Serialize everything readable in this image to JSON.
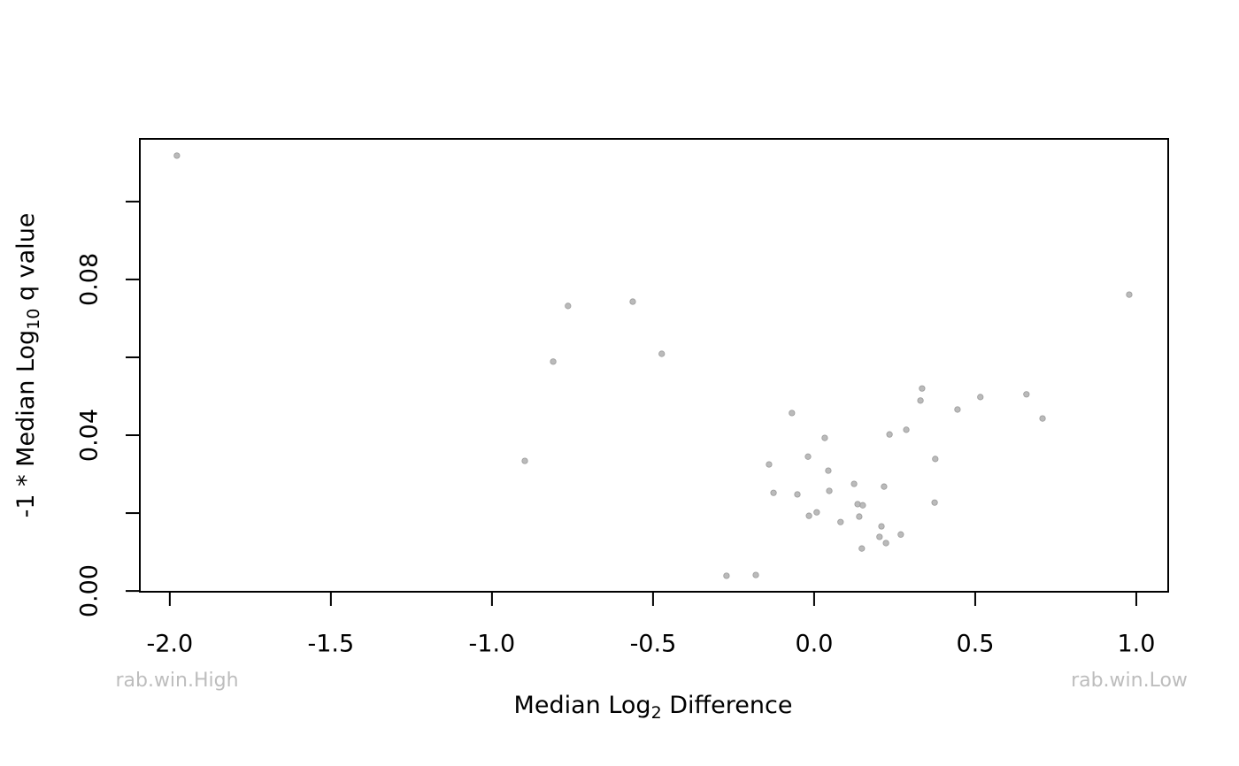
{
  "chart_data": {
    "type": "scatter",
    "xlabel": [
      "Median Log",
      "2",
      " Difference"
    ],
    "ylabel": [
      "-1 * Median Log",
      "10",
      " q value"
    ],
    "annotations": [
      "rab.win.High",
      "rab.win.Low"
    ],
    "color": "#a9a9a9",
    "xlim": [
      -2.093,
      1.099
    ],
    "ylim": [
      -0.0002,
      0.1161
    ],
    "xticks": [
      {
        "value": -2,
        "label": "-2.0"
      },
      -1.5,
      {
        "value": -1,
        "label": "-1.0"
      },
      -0.5,
      {
        "value": 0,
        "label": "0.0"
      },
      0.5,
      {
        "value": 1,
        "label": "1.0"
      }
    ],
    "yticks": [
      {
        "value": 0,
        "label": "0.00"
      },
      {
        "value": 0.02,
        "label": null
      },
      {
        "value": 0.04,
        "label": "0.04"
      },
      {
        "value": 0.06,
        "label": null
      },
      {
        "value": 0.08,
        "label": "0.08"
      },
      {
        "value": 0.1,
        "label": null
      }
    ],
    "x": [
      -1.978,
      -0.764,
      -0.563,
      -0.81,
      -0.473,
      -0.898,
      0.978,
      -0.069,
      0.033,
      -0.019,
      -0.14,
      0.044,
      -0.126,
      -0.052,
      0.047,
      0.124,
      0.217,
      -0.016,
      0.008,
      0.082,
      0.135,
      0.151,
      0.14,
      0.209,
      0.203,
      0.223,
      0.148,
      0.269,
      0.234,
      0.286,
      0.33,
      0.335,
      0.445,
      0.516,
      0.659,
      0.709,
      0.376,
      0.374,
      -0.272,
      -0.181
    ],
    "values": [
      0.1118,
      0.0732,
      0.0743,
      0.0589,
      0.0609,
      0.0334,
      0.0761,
      0.0457,
      0.0393,
      0.0345,
      0.0325,
      0.0309,
      0.0252,
      0.0248,
      0.0257,
      0.0275,
      0.0268,
      0.0193,
      0.0202,
      0.0177,
      0.0223,
      0.022,
      0.0191,
      0.0166,
      0.0139,
      0.0123,
      0.0109,
      0.0145,
      0.0402,
      0.0414,
      0.0489,
      0.052,
      0.0466,
      0.0498,
      0.0505,
      0.0443,
      0.0339,
      0.0227,
      0.0039,
      0.0041
    ]
  }
}
